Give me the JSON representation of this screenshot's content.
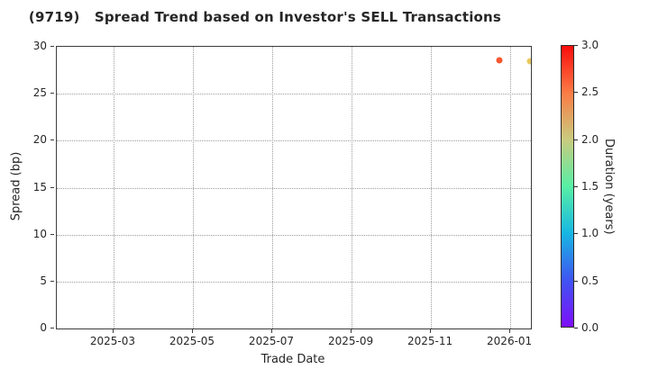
{
  "text_color": "#262626",
  "chart_data": {
    "type": "scatter",
    "title": "(9719)   Spread Trend based on Investor's SELL Transactions",
    "xlabel": "Trade Date",
    "ylabel": "Spread (bp)",
    "grid": {
      "on": true,
      "style": "dotted",
      "color": "#9c9c9c"
    },
    "x_axis": {
      "unit": "months_since_2025-01",
      "lim": [
        0.57,
        12.52
      ],
      "ticks": [
        {
          "v": 2,
          "label": "2025-03"
        },
        {
          "v": 4,
          "label": "2025-05"
        },
        {
          "v": 6,
          "label": "2025-07"
        },
        {
          "v": 8,
          "label": "2025-09"
        },
        {
          "v": 10,
          "label": "2025-11"
        },
        {
          "v": 12,
          "label": "2026-01"
        }
      ]
    },
    "y_axis": {
      "lim": [
        0,
        30
      ],
      "ticks": [
        0,
        5,
        10,
        15,
        20,
        25,
        30
      ]
    },
    "points": [
      {
        "x": 11.73,
        "trade_date_est": "2025-12-22",
        "spread_bp": 28.6,
        "duration_years_est": 2.7,
        "color": "#f8562e"
      },
      {
        "x": 12.5,
        "trade_date_est": "2026-01-15",
        "spread_bp": 28.5,
        "duration_years_est": 2.1,
        "color": "#e6c75f"
      }
    ],
    "colorbar": {
      "label": "Duration (years)",
      "range": [
        0.0,
        3.0
      ],
      "ticks": [
        "0.0",
        "0.5",
        "1.0",
        "1.5",
        "2.0",
        "2.5",
        "3.0"
      ],
      "gradient_stops": [
        {
          "at": 0.0,
          "color": "#7d0ff9"
        },
        {
          "at": 0.5,
          "color": "#3f55f2"
        },
        {
          "at": 1.0,
          "color": "#18b7e3"
        },
        {
          "at": 1.5,
          "color": "#58efa5"
        },
        {
          "at": 2.0,
          "color": "#c9cb7e"
        },
        {
          "at": 2.5,
          "color": "#fb7b45"
        },
        {
          "at": 3.0,
          "color": "#fb0d0c"
        }
      ]
    }
  }
}
